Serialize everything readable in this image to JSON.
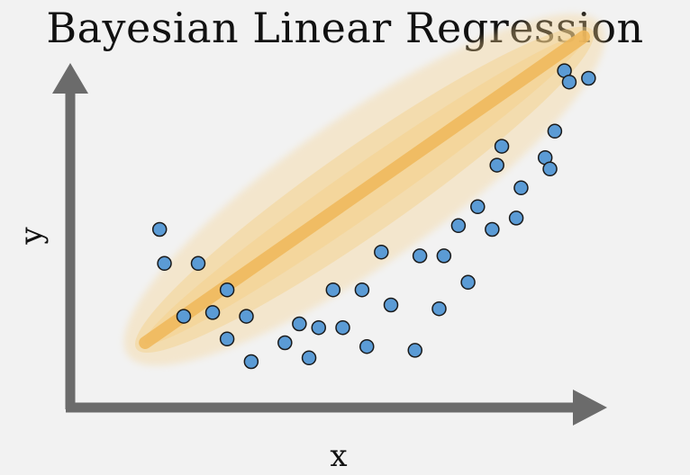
{
  "title": "Bayesian Linear Regression",
  "x_axis_label": "x",
  "y_axis_label": "y",
  "colors": {
    "background": "#f2f2f2",
    "axis": "#6b6b6b",
    "point_fill": "#5b9bd5",
    "point_stroke": "#1a1a1a",
    "regression_line": "#f0b85a",
    "uncertainty_band": "#f5d08a"
  },
  "chart_data": {
    "type": "scatter",
    "title": "Bayesian Linear Regression",
    "xlabel": "x",
    "ylabel": "y",
    "axis_ticks": "none",
    "grid": false,
    "regression_line": {
      "from": [
        0.09,
        0.15
      ],
      "to": [
        1.0,
        0.96
      ]
    },
    "uncertainty_band": "elliptical, widest near center of x range",
    "points": [
      {
        "x": 0.12,
        "y": 0.45
      },
      {
        "x": 0.13,
        "y": 0.36
      },
      {
        "x": 0.17,
        "y": 0.22
      },
      {
        "x": 0.2,
        "y": 0.36
      },
      {
        "x": 0.23,
        "y": 0.23
      },
      {
        "x": 0.26,
        "y": 0.29
      },
      {
        "x": 0.26,
        "y": 0.16
      },
      {
        "x": 0.3,
        "y": 0.22
      },
      {
        "x": 0.31,
        "y": 0.1
      },
      {
        "x": 0.38,
        "y": 0.15
      },
      {
        "x": 0.41,
        "y": 0.2
      },
      {
        "x": 0.43,
        "y": 0.11
      },
      {
        "x": 0.45,
        "y": 0.19
      },
      {
        "x": 0.48,
        "y": 0.29
      },
      {
        "x": 0.5,
        "y": 0.19
      },
      {
        "x": 0.54,
        "y": 0.29
      },
      {
        "x": 0.55,
        "y": 0.14
      },
      {
        "x": 0.58,
        "y": 0.39
      },
      {
        "x": 0.6,
        "y": 0.25
      },
      {
        "x": 0.65,
        "y": 0.13
      },
      {
        "x": 0.66,
        "y": 0.38
      },
      {
        "x": 0.7,
        "y": 0.24
      },
      {
        "x": 0.71,
        "y": 0.38
      },
      {
        "x": 0.74,
        "y": 0.46
      },
      {
        "x": 0.76,
        "y": 0.31
      },
      {
        "x": 0.78,
        "y": 0.51
      },
      {
        "x": 0.81,
        "y": 0.45
      },
      {
        "x": 0.82,
        "y": 0.62
      },
      {
        "x": 0.83,
        "y": 0.67
      },
      {
        "x": 0.86,
        "y": 0.48
      },
      {
        "x": 0.87,
        "y": 0.56
      },
      {
        "x": 0.92,
        "y": 0.64
      },
      {
        "x": 0.93,
        "y": 0.61
      },
      {
        "x": 0.94,
        "y": 0.71
      },
      {
        "x": 0.96,
        "y": 0.87
      },
      {
        "x": 0.97,
        "y": 0.84
      },
      {
        "x": 1.01,
        "y": 0.85
      }
    ]
  }
}
